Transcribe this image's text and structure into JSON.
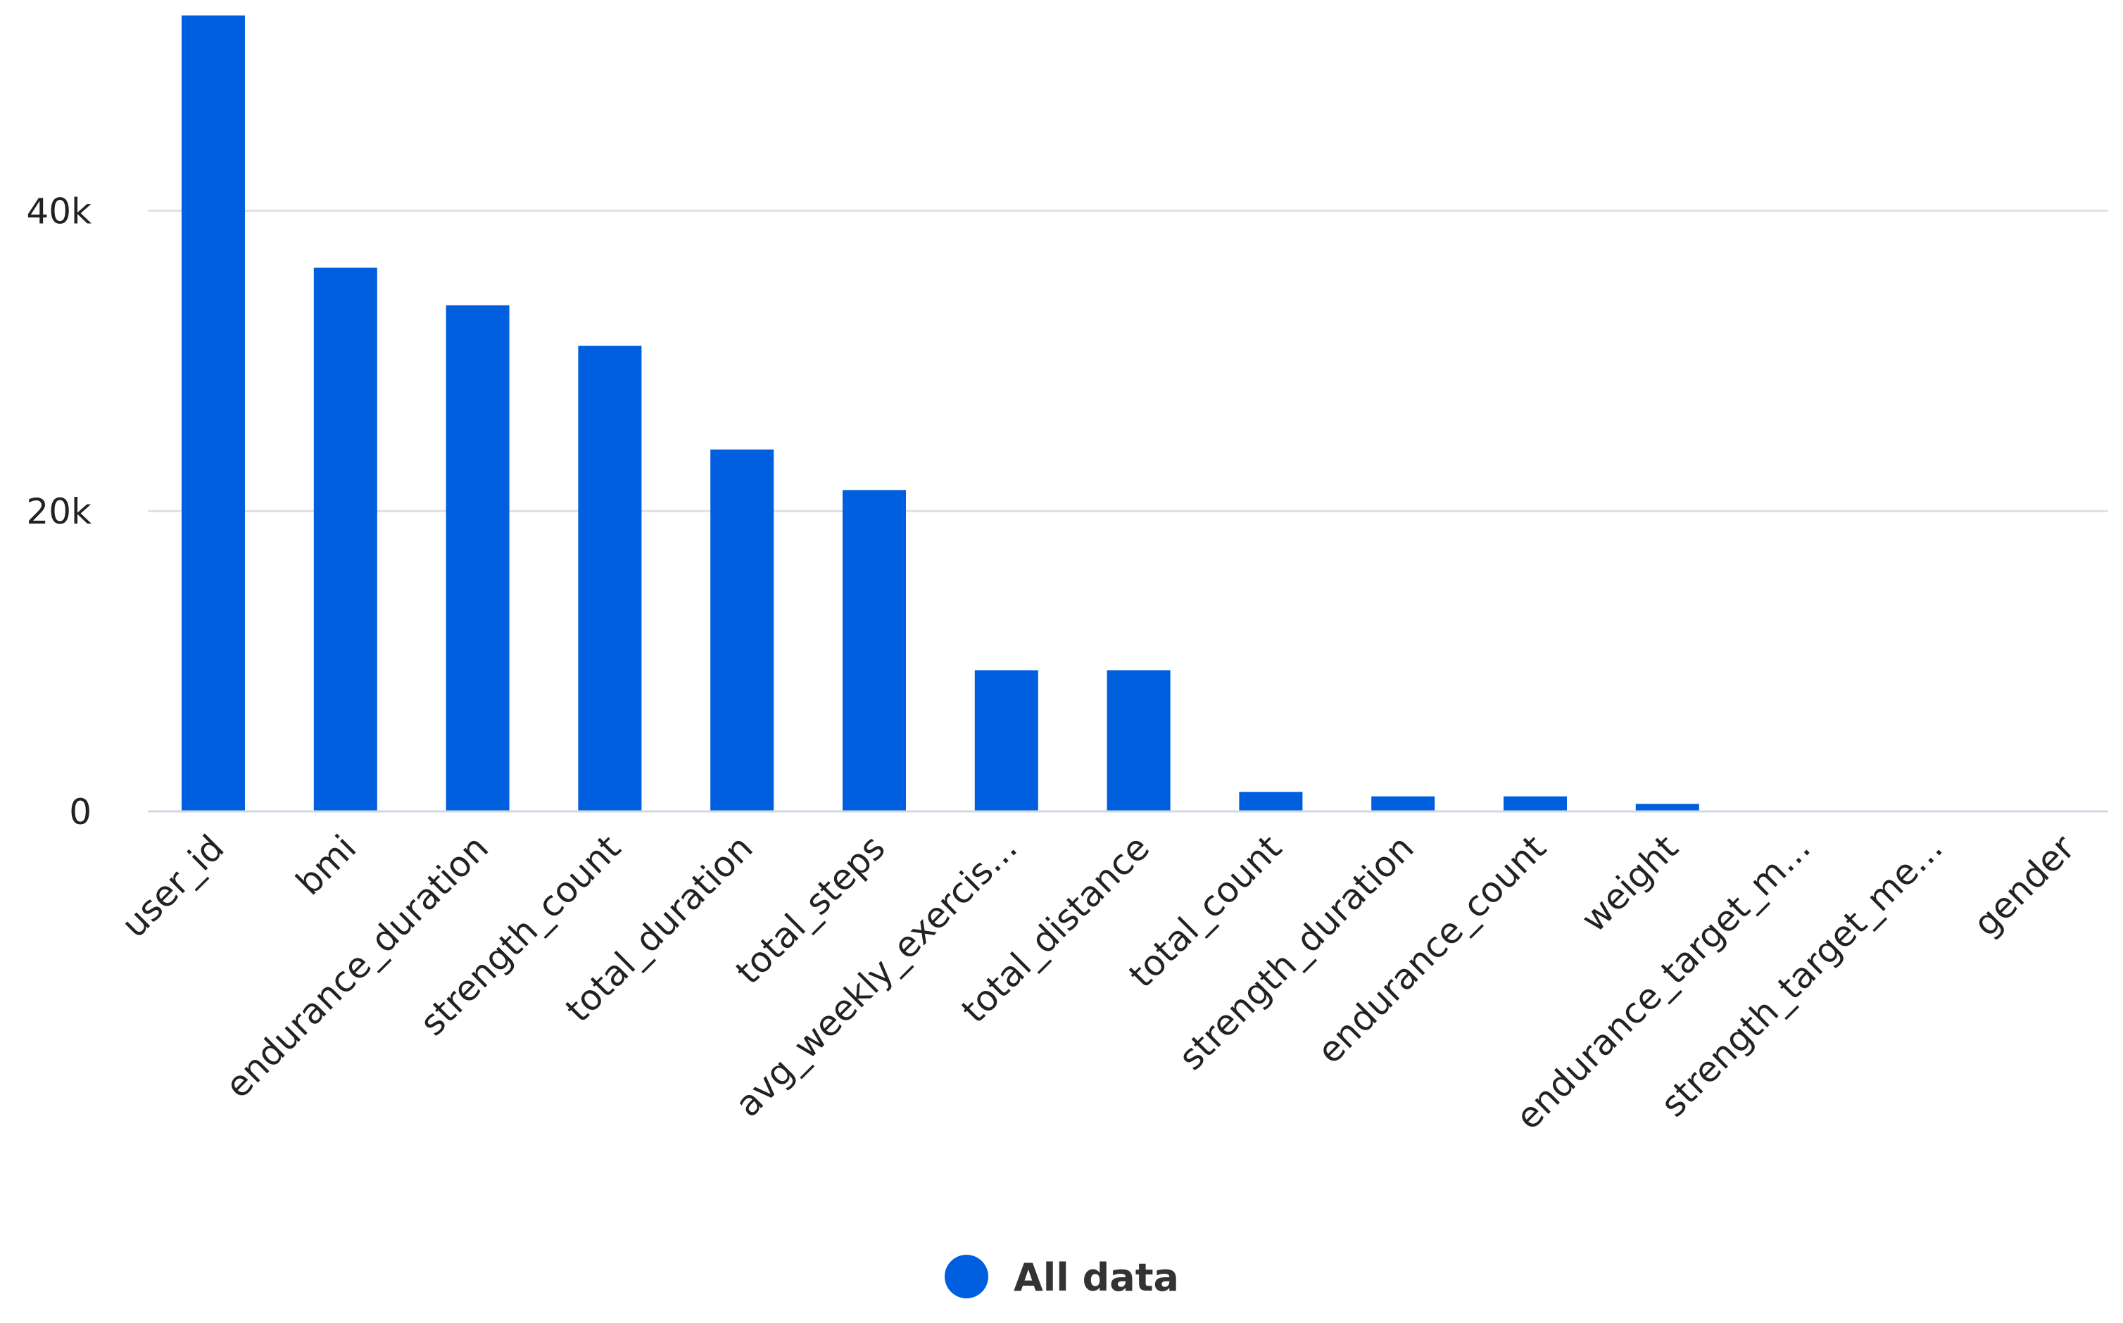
{
  "chart_data": {
    "type": "bar",
    "categories": [
      "user_id",
      "bmi",
      "endurance_duration",
      "strength_count",
      "total_duration",
      "total_steps",
      "avg_weekly_exercis...",
      "total_distance",
      "total_count",
      "strength_duration",
      "endurance_count",
      "weight",
      "endurance_target_m...",
      "strength_target_me...",
      "gender"
    ],
    "series": [
      {
        "name": "All data",
        "color": "#005fdf",
        "values": [
          53000,
          36200,
          33700,
          31000,
          24100,
          21400,
          9400,
          9400,
          1300,
          1000,
          1000,
          500,
          0,
          0,
          0
        ]
      }
    ],
    "yticks": [
      {
        "value": 0,
        "label": "0"
      },
      {
        "value": 20000,
        "label": "20k"
      },
      {
        "value": 40000,
        "label": "40k"
      }
    ],
    "ylim": [
      0,
      53000
    ],
    "grid": true,
    "legend_position": "bottom-center",
    "legend_label": "All data",
    "xlabel": "",
    "ylabel": "",
    "title": ""
  }
}
